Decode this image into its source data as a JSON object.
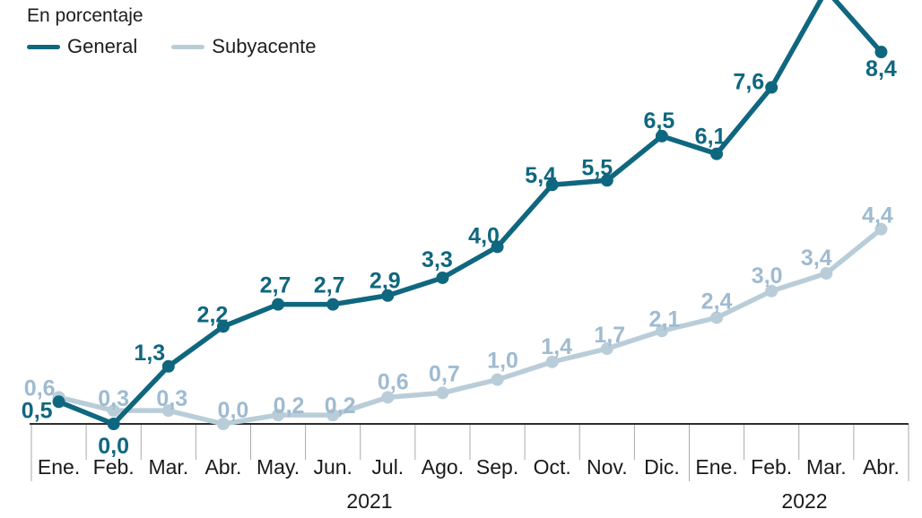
{
  "header": {
    "title": "En porcentaje",
    "legend": [
      {
        "name": "General",
        "color": "#0f677f"
      },
      {
        "name": "Subyacente",
        "color": "#b9cdd9"
      }
    ]
  },
  "chart_data": {
    "type": "line",
    "title": "En porcentaje",
    "xlabel": "",
    "ylabel": "",
    "unit": "%",
    "grid": false,
    "legend_position": "top-left",
    "ylim": [
      0,
      9.57
    ],
    "x_categories": [
      "Ene.",
      "Feb.",
      "Mar.",
      "Abr.",
      "May.",
      "Jun.",
      "Jul.",
      "Ago.",
      "Sep.",
      "Oct.",
      "Nov.",
      "Dic.",
      "Ene.",
      "Feb.",
      "Mar.",
      "Abr."
    ],
    "year_groups": [
      {
        "label": "2021",
        "start_index": 0,
        "end_index": 11
      },
      {
        "label": "2022",
        "start_index": 12,
        "end_index": 15
      }
    ],
    "series": [
      {
        "name": "General",
        "color": "#0f677f",
        "label_color": "#0f677f",
        "values": [
          0.5,
          0.0,
          1.3,
          2.2,
          2.7,
          2.7,
          2.9,
          3.3,
          4.0,
          5.4,
          5.5,
          6.5,
          6.1,
          7.6,
          9.8,
          8.4
        ],
        "labels": [
          "0,5",
          "0,0",
          "1,3",
          "2,2",
          "2,7",
          "2,7",
          "2,9",
          "3,3",
          "4,0",
          "5,4",
          "5,5",
          "6,5",
          "6,1",
          "7,6",
          "",
          "8,4"
        ]
      },
      {
        "name": "Subyacente",
        "color": "#b9cdd9",
        "label_color": "#9fbbd0",
        "values": [
          0.6,
          0.3,
          0.3,
          0.0,
          0.2,
          0.2,
          0.6,
          0.7,
          1.0,
          1.4,
          1.7,
          2.1,
          2.4,
          3.0,
          3.4,
          4.4
        ],
        "labels": [
          "0,6",
          "0,3",
          "0,3",
          "0,0",
          "0,2",
          "0,2",
          "0,6",
          "0,7",
          "1,0",
          "1,4",
          "1,7",
          "2,1",
          "2,4",
          "3,0",
          "3,4",
          "4,4"
        ]
      }
    ],
    "offscreen_peak": {
      "series": "General",
      "month_index": 14,
      "estimated_value": 9.8,
      "note": "line peak is clipped above the visible area, no data label shown"
    }
  }
}
